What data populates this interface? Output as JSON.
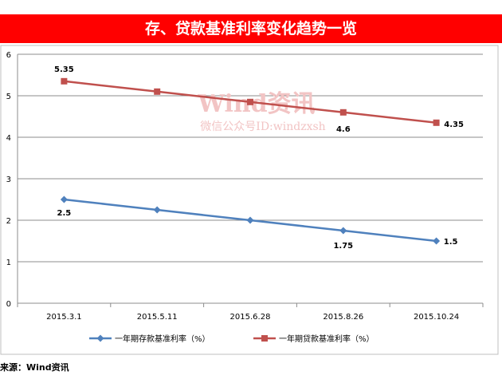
{
  "chart_data": {
    "type": "line",
    "title": "存、贷款基准利率变化趋势一览",
    "categories": [
      "2015.3.1",
      "2015.5.11",
      "2015.6.28",
      "2015.8.26",
      "2015.10.24"
    ],
    "series": [
      {
        "name": "一年期存款基准利率（%）",
        "values": [
          2.5,
          2.25,
          2.0,
          1.75,
          1.5
        ],
        "color": "#4f81bd",
        "marker": "diamond",
        "labels": [
          "2.5",
          "",
          "",
          "1.75",
          "1.5"
        ]
      },
      {
        "name": "一年期贷款基准利率（%）",
        "values": [
          5.35,
          5.1,
          4.85,
          4.6,
          4.35
        ],
        "color": "#c0504d",
        "marker": "square",
        "labels": [
          "5.35",
          "",
          "",
          "4.6",
          "4.35"
        ]
      }
    ],
    "yticks": [
      0,
      1,
      2,
      3,
      4,
      5,
      6
    ],
    "ylim": [
      0,
      6
    ],
    "grid": true,
    "legend": "bottom",
    "xlabel": "",
    "ylabel": ""
  },
  "watermark": {
    "main": "Wind资讯",
    "sub": "微信公众号ID:windzxsh"
  },
  "source": "来源：Wind资讯"
}
